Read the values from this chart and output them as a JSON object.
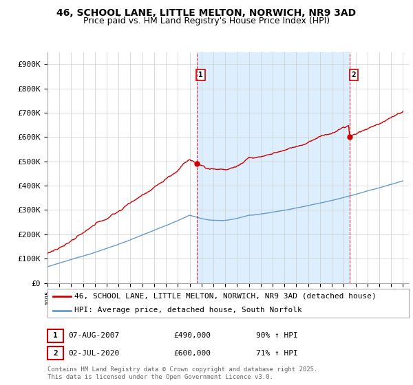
{
  "title_line1": "46, SCHOOL LANE, LITTLE MELTON, NORWICH, NR9 3AD",
  "title_line2": "Price paid vs. HM Land Registry's House Price Index (HPI)",
  "y_ticks": [
    0,
    100000,
    200000,
    300000,
    400000,
    500000,
    600000,
    700000,
    800000,
    900000
  ],
  "y_tick_labels": [
    "£0",
    "£100K",
    "£200K",
    "£300K",
    "£400K",
    "£500K",
    "£600K",
    "£700K",
    "£800K",
    "£900K"
  ],
  "ylim": [
    0,
    950000
  ],
  "xlim_start": 1995,
  "xlim_end": 2025.5,
  "red_color": "#cc0000",
  "blue_color": "#6699cc",
  "shade_color": "#ddeeff",
  "background_color": "#ffffff",
  "grid_color": "#cccccc",
  "legend_entries": [
    "46, SCHOOL LANE, LITTLE MELTON, NORWICH, NR9 3AD (detached house)",
    "HPI: Average price, detached house, South Norfolk"
  ],
  "annotation1_label": "1",
  "annotation1_date": "07-AUG-2007",
  "annotation1_price": "£490,000",
  "annotation1_hpi": "90% ↑ HPI",
  "annotation1_year": 2007.583,
  "annotation1_value": 490000,
  "annotation2_label": "2",
  "annotation2_date": "02-JUL-2020",
  "annotation2_price": "£600,000",
  "annotation2_hpi": "71% ↑ HPI",
  "annotation2_year": 2020.5,
  "annotation2_value": 600000,
  "footer": "Contains HM Land Registry data © Crown copyright and database right 2025.\nThis data is licensed under the Open Government Licence v3.0.",
  "title_fontsize": 10,
  "subtitle_fontsize": 9,
  "tick_fontsize": 8,
  "legend_fontsize": 8,
  "annotation_fontsize": 8,
  "footer_fontsize": 6.5
}
